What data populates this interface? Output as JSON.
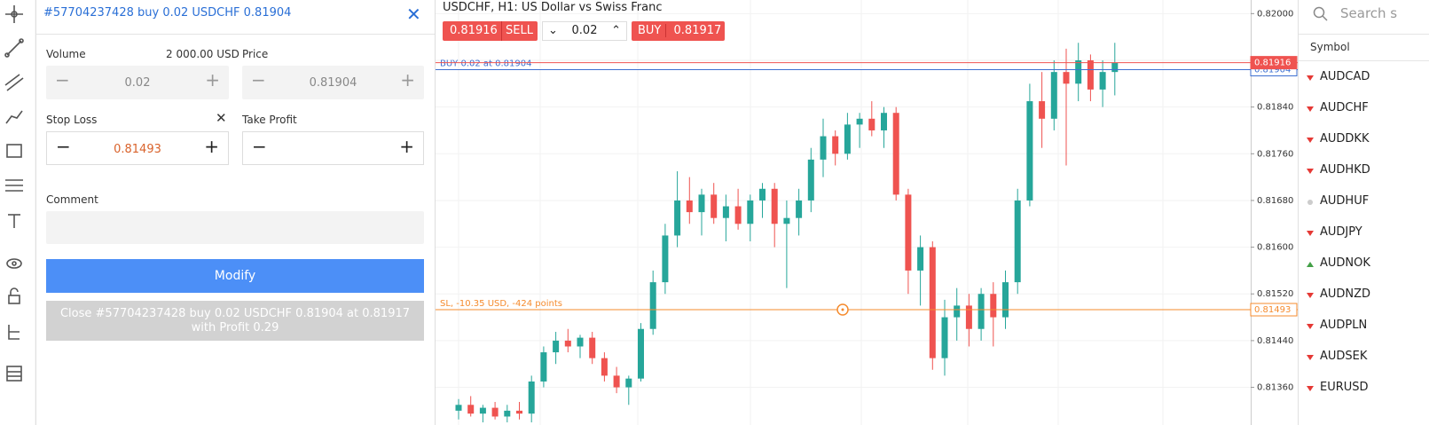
{
  "order_panel": {
    "title": "#57704237428 buy 0.02 USDCHF 0.81904",
    "volume_label": "Volume",
    "volume_amount": "2 000.00 USD",
    "volume": 0.02,
    "price_label": "Price",
    "price": 0.81904,
    "stop_loss_label": "Stop Loss",
    "stop_loss": 0.81493,
    "take_profit_label": "Take Profit",
    "comment_label": "Comment",
    "modify_button": "Modify",
    "close_button": "Close #57704237428 buy 0.02 USDCHF 0.81904 at 0.81917 with Profit 0.29"
  },
  "chart": {
    "title": "USDCHF, H1: US Dollar vs Swiss Franc",
    "sell_price": 0.81916,
    "sell_label": "SELL",
    "quantity": 0.02,
    "buy_label": "BUY",
    "buy_price": 0.81917,
    "position_label": "BUY 0.02 at 0.81904",
    "position_price": 0.81904,
    "sl_label": "SL, -10.35 USD, -424 points",
    "sl_price": 0.81493,
    "bid_price": 0.81916,
    "ylim": [
      0.812955,
      0.820233
    ],
    "yticks": [
      {
        "value": 0.82,
        "label": "0.82000"
      },
      {
        "value": 0.8192,
        "label": "0.81920"
      },
      {
        "value": 0.8184,
        "label": "0.81840"
      },
      {
        "value": 0.8176,
        "label": "0.81760"
      },
      {
        "value": 0.8168,
        "label": "0.81680"
      },
      {
        "value": 0.816,
        "label": "0.81600"
      },
      {
        "value": 0.8152,
        "label": "0.81520"
      },
      {
        "value": 0.8144,
        "label": "0.81440"
      },
      {
        "value": 0.8136,
        "label": "0.81360"
      }
    ],
    "up_color": "#26a69a",
    "down_color": "#ef5350",
    "candles": [
      [
        0.8132,
        0.8134,
        0.81305,
        0.8133
      ],
      [
        0.8133,
        0.81345,
        0.8131,
        0.81315
      ],
      [
        0.81315,
        0.8133,
        0.813,
        0.81325
      ],
      [
        0.81325,
        0.81335,
        0.81305,
        0.8131
      ],
      [
        0.8131,
        0.8133,
        0.813,
        0.8132
      ],
      [
        0.8132,
        0.81335,
        0.81305,
        0.81315
      ],
      [
        0.81315,
        0.8138,
        0.813,
        0.8137
      ],
      [
        0.8137,
        0.8143,
        0.8136,
        0.8142
      ],
      [
        0.8142,
        0.81455,
        0.814,
        0.8144
      ],
      [
        0.8144,
        0.8146,
        0.8142,
        0.8143
      ],
      [
        0.8143,
        0.8145,
        0.8141,
        0.81445
      ],
      [
        0.81445,
        0.81455,
        0.814,
        0.8141
      ],
      [
        0.8141,
        0.8142,
        0.8137,
        0.8138
      ],
      [
        0.8138,
        0.81395,
        0.8135,
        0.8136
      ],
      [
        0.8136,
        0.8138,
        0.8133,
        0.81375
      ],
      [
        0.81375,
        0.8147,
        0.8137,
        0.8146
      ],
      [
        0.8146,
        0.8156,
        0.8145,
        0.8154
      ],
      [
        0.8154,
        0.8164,
        0.8152,
        0.8162
      ],
      [
        0.8162,
        0.8173,
        0.816,
        0.8168
      ],
      [
        0.8168,
        0.8172,
        0.8164,
        0.8166
      ],
      [
        0.8166,
        0.817,
        0.8162,
        0.8169
      ],
      [
        0.8169,
        0.8171,
        0.8164,
        0.8165
      ],
      [
        0.8165,
        0.8169,
        0.8161,
        0.8167
      ],
      [
        0.8167,
        0.817,
        0.8163,
        0.8164
      ],
      [
        0.8164,
        0.8169,
        0.8161,
        0.8168
      ],
      [
        0.8168,
        0.8171,
        0.8165,
        0.817
      ],
      [
        0.817,
        0.8171,
        0.816,
        0.8164
      ],
      [
        0.8164,
        0.8168,
        0.8153,
        0.8165
      ],
      [
        0.8165,
        0.817,
        0.8162,
        0.8168
      ],
      [
        0.8168,
        0.8177,
        0.8166,
        0.8175
      ],
      [
        0.8175,
        0.8182,
        0.8172,
        0.8179
      ],
      [
        0.8179,
        0.818,
        0.8174,
        0.8176
      ],
      [
        0.8176,
        0.8183,
        0.8175,
        0.8181
      ],
      [
        0.8181,
        0.8183,
        0.8177,
        0.8182
      ],
      [
        0.8182,
        0.8185,
        0.8179,
        0.818
      ],
      [
        0.818,
        0.8184,
        0.8177,
        0.8183
      ],
      [
        0.8183,
        0.8184,
        0.8168,
        0.8169
      ],
      [
        0.8169,
        0.817,
        0.8152,
        0.8156
      ],
      [
        0.8156,
        0.8162,
        0.815,
        0.816
      ],
      [
        0.816,
        0.8161,
        0.8139,
        0.8141
      ],
      [
        0.8141,
        0.8151,
        0.8138,
        0.8148
      ],
      [
        0.8148,
        0.8153,
        0.8144,
        0.815
      ],
      [
        0.815,
        0.8152,
        0.8143,
        0.8146
      ],
      [
        0.8146,
        0.8153,
        0.8144,
        0.8152
      ],
      [
        0.8152,
        0.8154,
        0.8143,
        0.8148
      ],
      [
        0.8148,
        0.8156,
        0.8146,
        0.8154
      ],
      [
        0.8154,
        0.817,
        0.8152,
        0.8168
      ],
      [
        0.8168,
        0.8188,
        0.8167,
        0.8185
      ],
      [
        0.8185,
        0.819,
        0.8177,
        0.8182
      ],
      [
        0.8182,
        0.8192,
        0.818,
        0.819
      ],
      [
        0.819,
        0.8194,
        0.8174,
        0.8188
      ],
      [
        0.8188,
        0.8195,
        0.8185,
        0.8192
      ],
      [
        0.8192,
        0.8193,
        0.8185,
        0.8187
      ],
      [
        0.8187,
        0.8192,
        0.8184,
        0.819
      ],
      [
        0.819,
        0.8195,
        0.8186,
        0.81916
      ]
    ]
  },
  "symbols": {
    "search_placeholder": "Search s",
    "column": "Symbol",
    "list": [
      {
        "name": "AUDCAD",
        "change": "down"
      },
      {
        "name": "AUDCHF",
        "change": "down"
      },
      {
        "name": "AUDDKK",
        "change": "down"
      },
      {
        "name": "AUDHKD",
        "change": "down"
      },
      {
        "name": "AUDHUF",
        "change": "none"
      },
      {
        "name": "AUDJPY",
        "change": "down"
      },
      {
        "name": "AUDNOK",
        "change": "up"
      },
      {
        "name": "AUDNZD",
        "change": "down"
      },
      {
        "name": "AUDPLN",
        "change": "down"
      },
      {
        "name": "AUDSEK",
        "change": "down"
      },
      {
        "name": "EURUSD",
        "change": "down"
      }
    ]
  }
}
